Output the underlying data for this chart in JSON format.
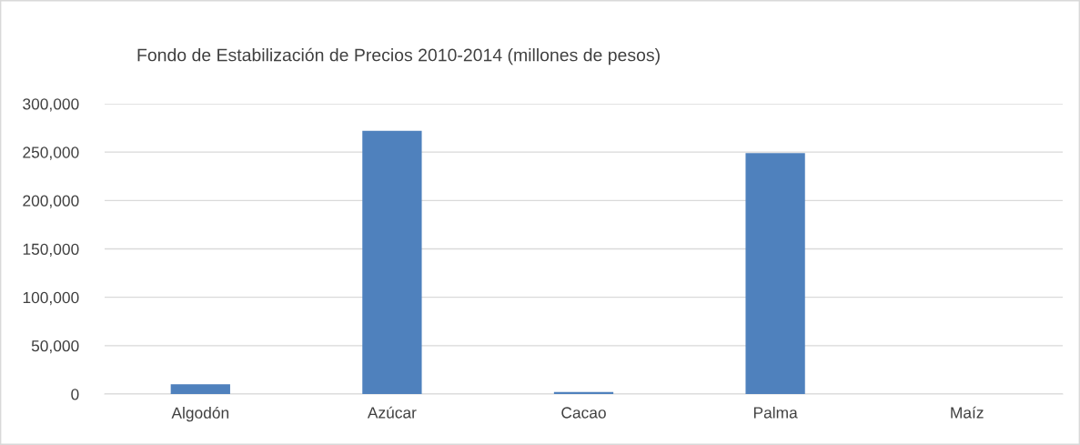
{
  "chart_data": {
    "type": "bar",
    "title": "Fondo de Estabilización de Precios 2010-2014 (millones de pesos)",
    "categories": [
      "Algodón",
      "Azúcar",
      "Cacao",
      "Palma",
      "Maíz"
    ],
    "values": [
      10000,
      272000,
      2000,
      249000,
      0
    ],
    "color": "#4f81bd",
    "ylim": [
      0,
      300000
    ],
    "yticks": [
      {
        "value": 0,
        "label": "0"
      },
      {
        "value": 50000,
        "label": "50,000"
      },
      {
        "value": 100000,
        "label": "100,000"
      },
      {
        "value": 150000,
        "label": "150,000"
      },
      {
        "value": 200000,
        "label": "200,000"
      },
      {
        "value": 250000,
        "label": "250,000"
      },
      {
        "value": 300000,
        "label": "300,000"
      }
    ],
    "grid": "y",
    "legend": false
  }
}
